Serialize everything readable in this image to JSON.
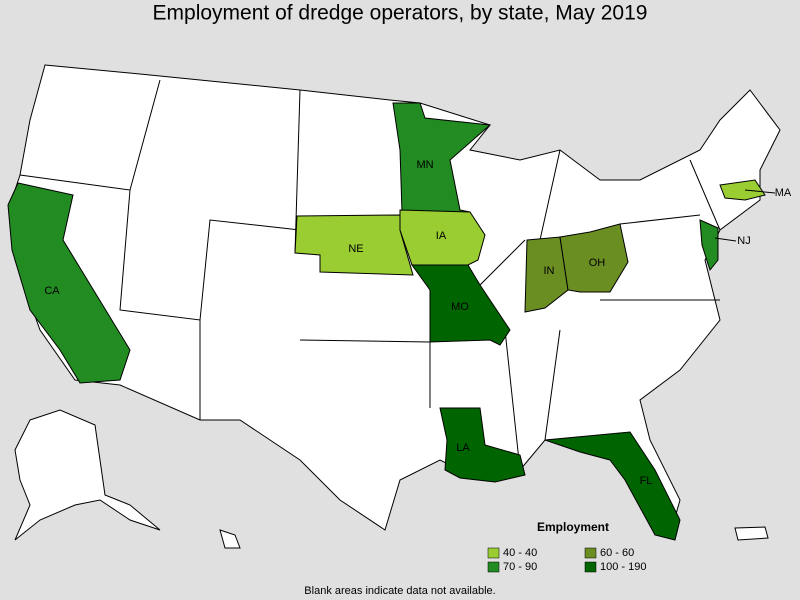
{
  "title": "Employment of dredge operators, by state, May 2019",
  "states": [
    {
      "label": "CA",
      "color": "#228b22"
    },
    {
      "label": "MN",
      "color": "#228b22"
    },
    {
      "label": "NE",
      "color": "#9acd32"
    },
    {
      "label": "IA",
      "color": "#9acd32"
    },
    {
      "label": "MO",
      "color": "#006400"
    },
    {
      "label": "IN",
      "color": "#6b8e23"
    },
    {
      "label": "OH",
      "color": "#6b8e23"
    },
    {
      "label": "NJ",
      "color": "#228b22"
    },
    {
      "label": "MA",
      "color": "#9acd32"
    },
    {
      "label": "LA",
      "color": "#006400"
    },
    {
      "label": "FL",
      "color": "#006400"
    }
  ],
  "legend": {
    "title": "Employment",
    "items": [
      {
        "label": "40 - 40",
        "color": "#9acd32"
      },
      {
        "label": "60 - 60",
        "color": "#6b8e23"
      },
      {
        "label": "70 - 90",
        "color": "#228b22"
      },
      {
        "label": "100 - 190",
        "color": "#006400"
      }
    ]
  },
  "footnote": "Blank areas indicate data not available."
}
